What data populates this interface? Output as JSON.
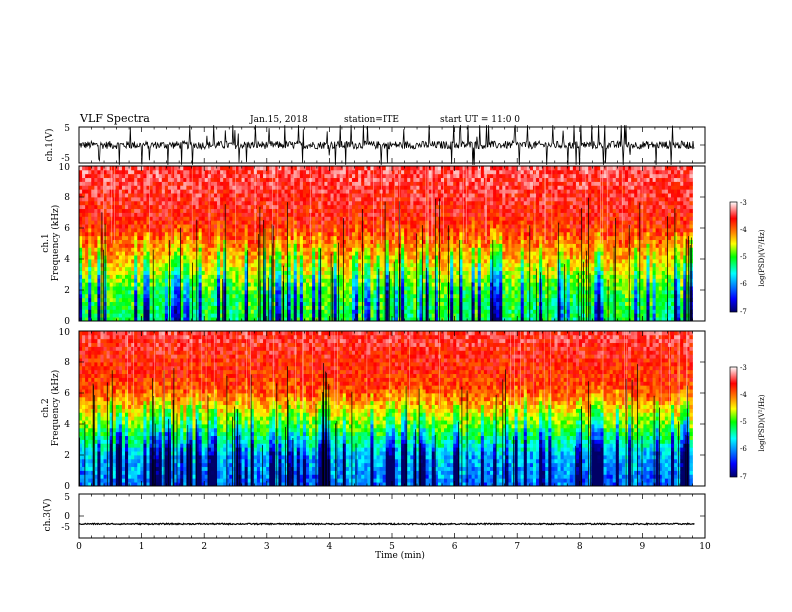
{
  "header": {
    "title": "VLF Spectra",
    "date": "Jan.15, 2018",
    "station": "station=ITE",
    "start": "start UT = 11:0 0"
  },
  "chart_data": [
    {
      "type": "line",
      "name": "ch1-waveform",
      "ylabel": "ch.1(V)",
      "ylim": [
        -5,
        5
      ],
      "yticks": [
        "5",
        "-5"
      ],
      "xlim": [
        0,
        10
      ],
      "baseline": 0,
      "description_of_series": "dense noisy waveform with frequent spikes",
      "series_color": "#000000"
    },
    {
      "type": "heatmap",
      "name": "ch1-spectrogram",
      "ylabel_line1": "ch.1",
      "ylabel_line2": "Frequency (kHz)",
      "ylim": [
        0,
        10
      ],
      "yticks": [
        "0",
        "2",
        "4",
        "6",
        "8",
        "10"
      ],
      "xlim": [
        0,
        9.8
      ],
      "colorbar": {
        "label": "log(PSD)(V²/Hz)",
        "range": [
          -7,
          -3
        ],
        "ticks": [
          "-3",
          "-4",
          "-5",
          "-6",
          "-7"
        ],
        "colors": [
          "#000066",
          "#0000ff",
          "#00ffff",
          "#00ff00",
          "#ffff00",
          "#ff0000",
          "#ffffff"
        ]
      },
      "profile": [
        {
          "f": 0,
          "level": 0.45
        },
        {
          "f": 2,
          "level": 0.5
        },
        {
          "f": 4,
          "level": 0.68
        },
        {
          "f": 6,
          "level": 0.82
        },
        {
          "f": 10,
          "level": 0.9
        }
      ]
    },
    {
      "type": "heatmap",
      "name": "ch2-spectrogram",
      "ylabel_line1": "ch.2",
      "ylabel_line2": "Frequency (kHz)",
      "ylim": [
        0,
        10
      ],
      "yticks": [
        "0",
        "2",
        "4",
        "6",
        "8",
        "10"
      ],
      "xlim": [
        0,
        9.8
      ],
      "colorbar": {
        "label": "log(PSD)(V²/Hz)",
        "range": [
          -7,
          -3
        ],
        "ticks": [
          "-3",
          "-4",
          "-5",
          "-6",
          "-7"
        ],
        "colors": [
          "#000066",
          "#0000ff",
          "#00ffff",
          "#00ff00",
          "#ffff00",
          "#ff0000",
          "#ffffff"
        ]
      },
      "profile": [
        {
          "f": 0,
          "level": 0.22
        },
        {
          "f": 2,
          "level": 0.3
        },
        {
          "f": 4,
          "level": 0.55
        },
        {
          "f": 6,
          "level": 0.78
        },
        {
          "f": 10,
          "level": 0.88
        }
      ]
    },
    {
      "type": "line",
      "name": "ch3-waveform",
      "ylabel": "ch.3(V)",
      "ylim": [
        -5,
        5
      ],
      "yticks": [
        "5",
        "0",
        "-5"
      ],
      "xlim": [
        0,
        10
      ],
      "baseline": -1.8,
      "series_color": "#000000"
    }
  ],
  "xaxis": {
    "label": "Time (min)",
    "ticks": [
      "0",
      "1",
      "2",
      "3",
      "4",
      "5",
      "6",
      "7",
      "8",
      "9",
      "10"
    ],
    "range": [
      0,
      10
    ]
  }
}
